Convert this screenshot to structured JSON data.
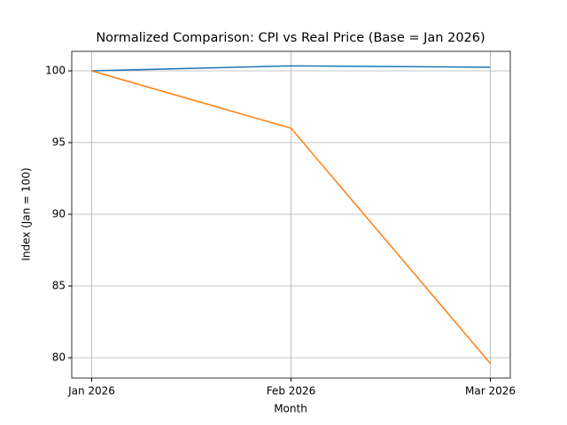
{
  "chart_data": {
    "type": "line",
    "title": "Normalized Comparison: CPI vs Real Price (Base = Jan 2026)",
    "x_label": "Month",
    "y_label": "Index (Jan = 100)",
    "categories": [
      "Jan 2026",
      "Feb 2026",
      "Mar 2026"
    ],
    "series": [
      {
        "color": "#1f77b4",
        "values": [
          100,
          100.35,
          100.25
        ]
      },
      {
        "color": "#ff7f0e",
        "values": [
          100,
          96,
          79.6
        ]
      }
    ],
    "ylim": [
      78.58,
      101.36
    ],
    "yticks": [
      80,
      85,
      90,
      95,
      100
    ],
    "grid": true
  }
}
